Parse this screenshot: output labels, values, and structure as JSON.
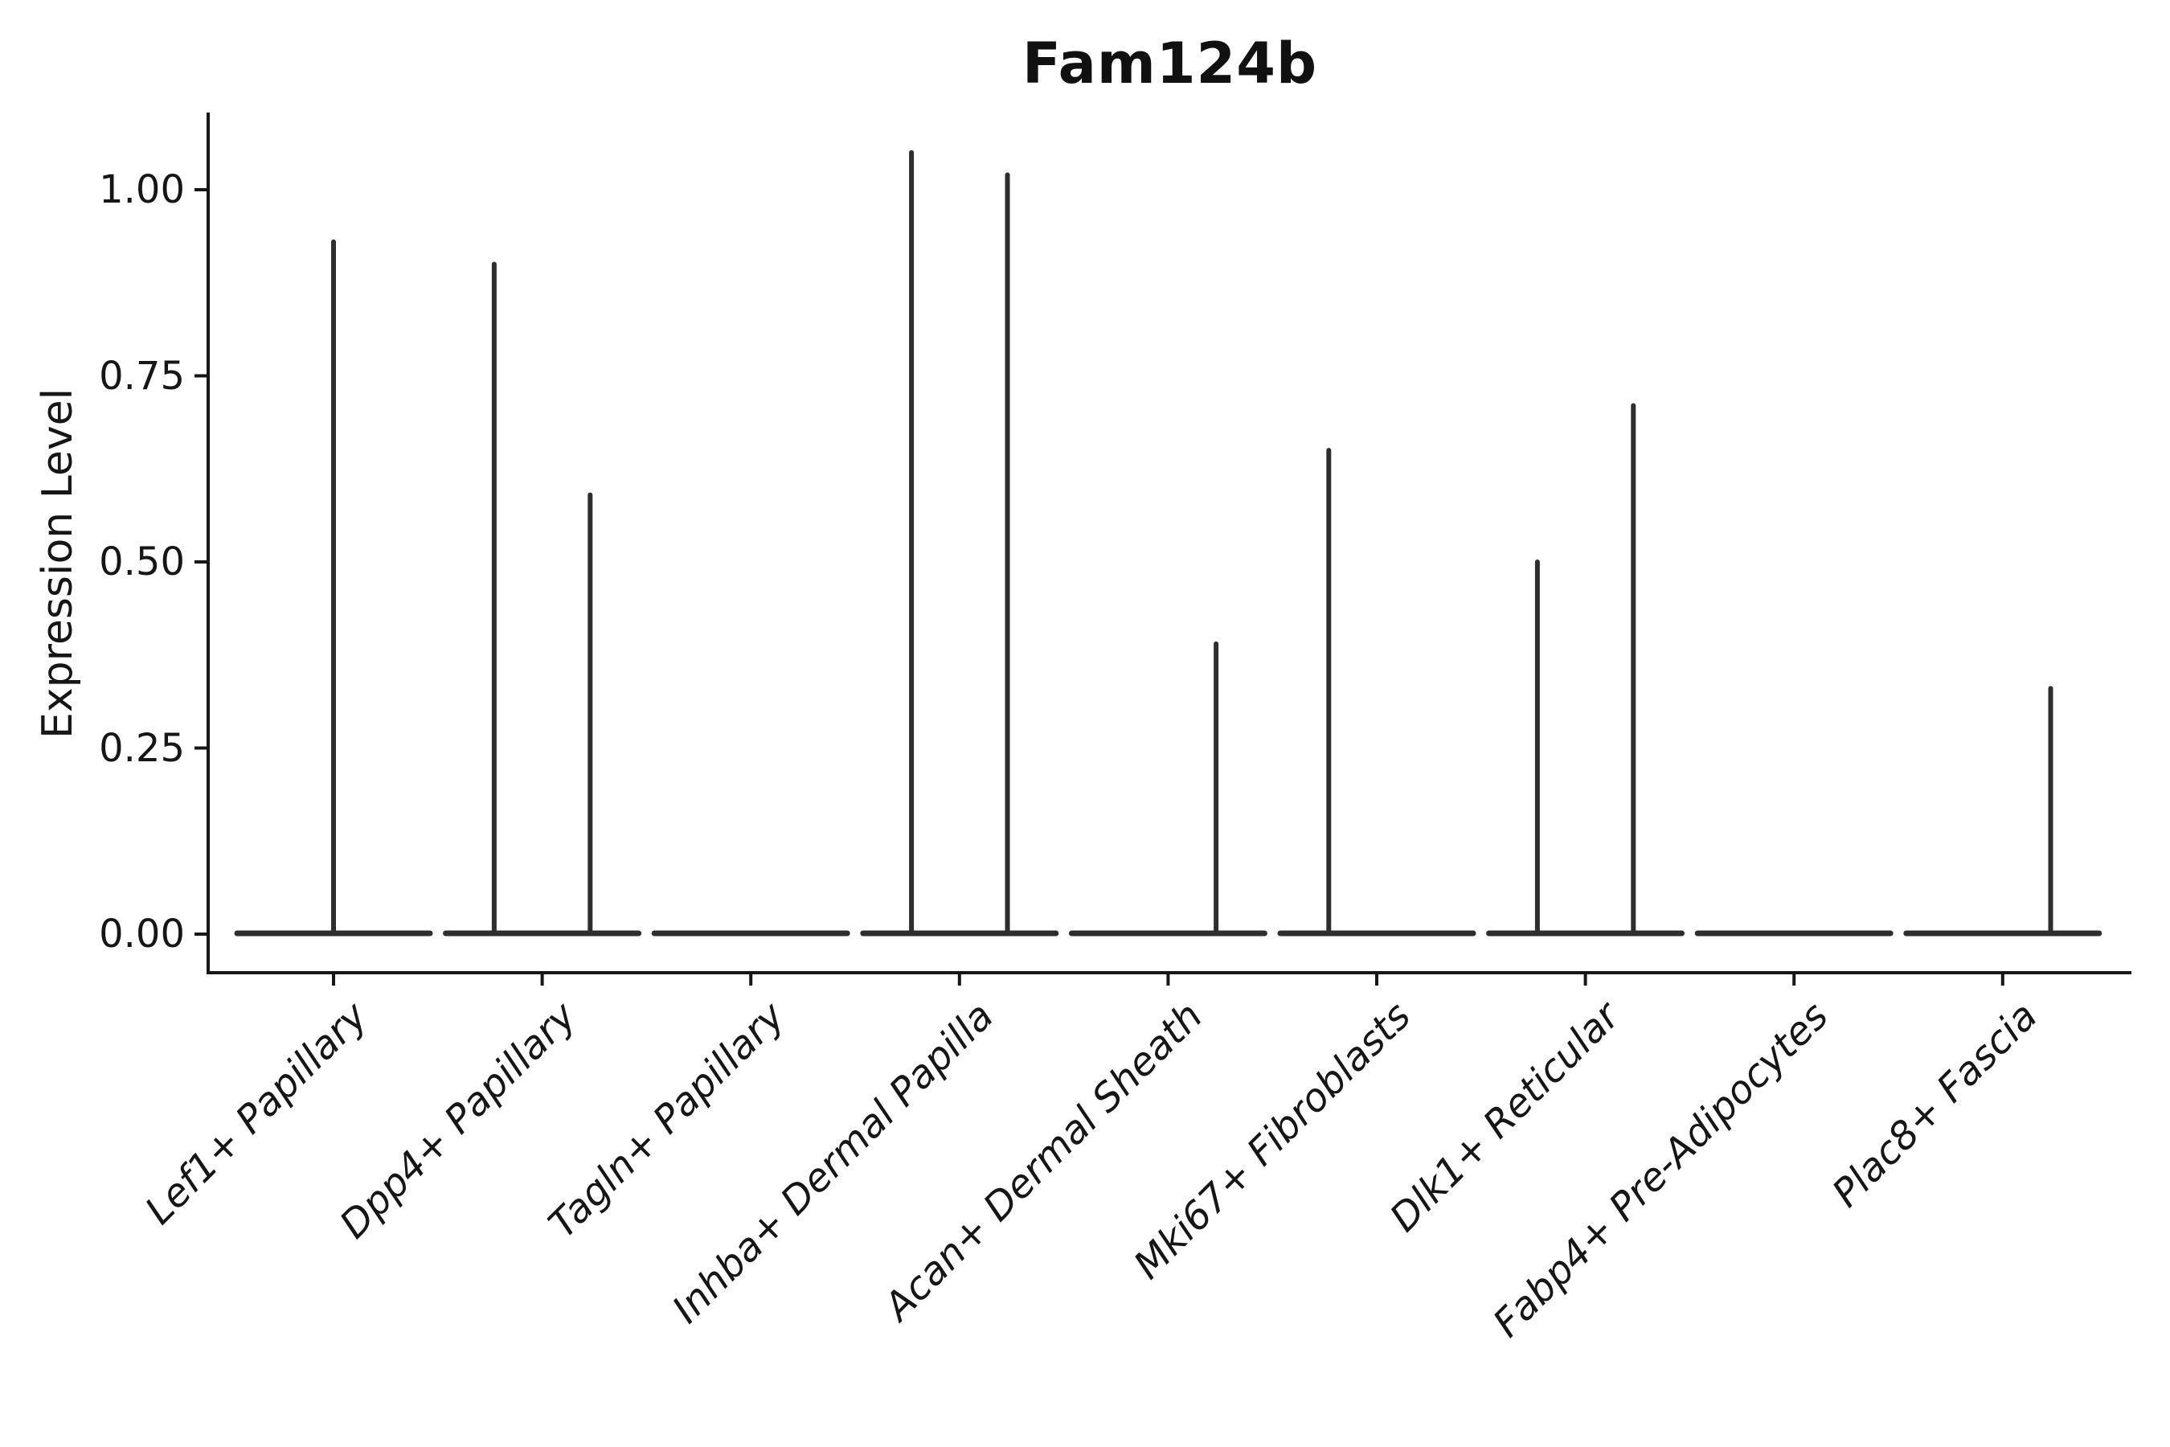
{
  "figure": {
    "background": "#ffffff"
  },
  "chart_data": {
    "type": "violin",
    "title": "Fam124b",
    "ylabel": "Expression Level",
    "xlabel": "",
    "categories": [
      "Lef1+ Papillary",
      "Dpp4+ Papillary",
      "Tagln+ Papillary",
      "Inhba+ Dermal Papilla",
      "Acan+ Dermal Sheath",
      "Mki67+ Fibroblasts",
      "Dlk1+ Reticular",
      "Fabp4+ Pre-Adipocytes",
      "Plac8+ Fascia"
    ],
    "yticks": [
      0,
      0.25,
      0.5,
      0.75,
      1.0
    ],
    "ytick_labels": [
      "0.00",
      "0.25",
      "0.50",
      "0.75",
      "1.00"
    ],
    "ylim": [
      -0.052,
      1.104
    ],
    "grid": false,
    "legend": null,
    "description": "Violin plot of Fam124b expression; each violin collapses to a flat bar at 0 with thin spikes up to the max expressed cells.",
    "style": {
      "violin_color": "#2e2e2e",
      "axis_color": "#161616",
      "text_color": "#161616"
    },
    "series": [
      {
        "category": "Lef1+ Papillary",
        "bulk_at": 0,
        "spikes": [
          {
            "pos": 0,
            "max": 0.93
          }
        ]
      },
      {
        "category": "Dpp4+ Papillary",
        "bulk_at": 0,
        "spikes": [
          {
            "pos": -0.23,
            "max": 0.9
          },
          {
            "pos": 0.23,
            "max": 0.59
          }
        ]
      },
      {
        "category": "Tagln+ Papillary",
        "bulk_at": 0,
        "spikes": []
      },
      {
        "category": "Inhba+ Dermal Papilla",
        "bulk_at": 0,
        "spikes": [
          {
            "pos": -0.23,
            "max": 1.05
          },
          {
            "pos": 0.23,
            "max": 1.02
          }
        ]
      },
      {
        "category": "Acan+ Dermal Sheath",
        "bulk_at": 0,
        "spikes": [
          {
            "pos": 0.23,
            "max": 0.39
          }
        ]
      },
      {
        "category": "Mki67+ Fibroblasts",
        "bulk_at": 0,
        "spikes": [
          {
            "pos": -0.23,
            "max": 0.65
          }
        ]
      },
      {
        "category": "Dlk1+ Reticular",
        "bulk_at": 0,
        "spikes": [
          {
            "pos": -0.23,
            "max": 0.5
          },
          {
            "pos": 0.23,
            "max": 0.71
          }
        ]
      },
      {
        "category": "Fabp4+ Pre-Adipocytes",
        "bulk_at": 0,
        "spikes": []
      },
      {
        "category": "Plac8+ Fascia",
        "bulk_at": 0,
        "spikes": [
          {
            "pos": 0.23,
            "max": 0.33
          }
        ]
      }
    ]
  }
}
